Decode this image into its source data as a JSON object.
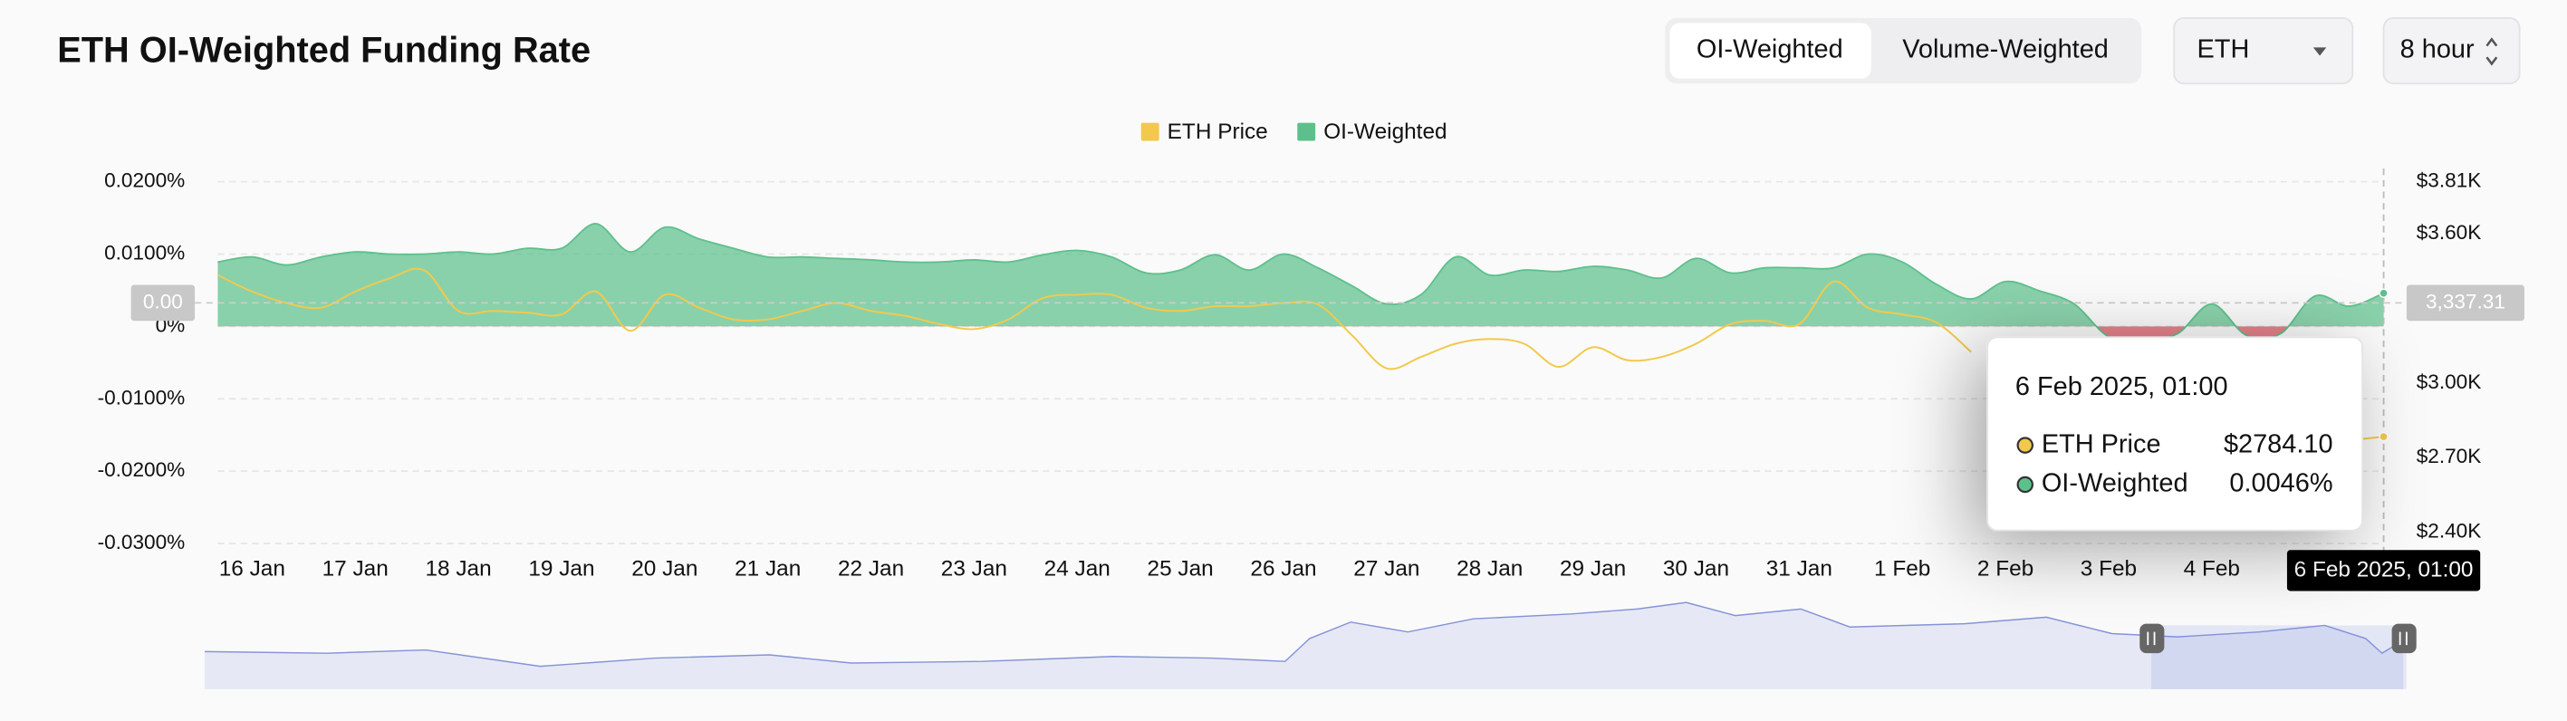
{
  "header": {
    "title": "ETH OI-Weighted Funding Rate",
    "tabs": [
      "OI-Weighted",
      "Volume-Weighted"
    ],
    "coin": "ETH",
    "interval": "8 hour"
  },
  "chart_data": {
    "type": "area",
    "legend": "top",
    "categories": [
      null,
      "16 Jan",
      null,
      null,
      "17 Jan",
      null,
      null,
      "18 Jan",
      null,
      null,
      "19 Jan",
      null,
      null,
      "20 Jan",
      null,
      null,
      "21 Jan",
      null,
      null,
      "22 Jan",
      null,
      null,
      "23 Jan",
      null,
      null,
      "24 Jan",
      null,
      null,
      "25 Jan",
      null,
      null,
      "26 Jan",
      null,
      null,
      "27 Jan",
      null,
      null,
      "28 Jan",
      null,
      null,
      "29 Jan",
      null,
      null,
      "30 Jan",
      null,
      null,
      "31 Jan",
      null,
      null,
      "1 Feb",
      null,
      null,
      "2 Feb",
      null,
      null,
      "3 Feb",
      null,
      null,
      "4 Feb",
      null,
      null,
      null,
      null,
      null
    ],
    "series": [
      {
        "name": "ETH Price",
        "type": "line",
        "axis": "y2",
        "color": "#f2c94c",
        "values": [
          3434,
          3368,
          3322,
          3303,
          3368,
          3421,
          3454,
          3290,
          3290,
          3283,
          3276,
          3368,
          3210,
          3355,
          3303,
          3256,
          3256,
          3290,
          3322,
          3290,
          3270,
          3237,
          3217,
          3256,
          3342,
          3355,
          3355,
          3303,
          3290,
          3309,
          3309,
          3322,
          3316,
          3191,
          3059,
          3105,
          3158,
          3177,
          3158,
          3065,
          3144,
          3092,
          3105,
          3158,
          3237,
          3250,
          3237,
          3408,
          3303,
          3276,
          3243,
          3125,
          null,
          null,
          null,
          null,
          null,
          null,
          null,
          null,
          null,
          null,
          2769,
          2784.1
        ]
      },
      {
        "name": "OI-Weighted",
        "type": "area",
        "color": "#5dc08c",
        "negative_color": "#e06c75",
        "values": [
          0.0089,
          0.0096,
          0.0085,
          0.0096,
          0.0103,
          0.01,
          0.01,
          0.0103,
          0.01,
          0.0108,
          0.0108,
          0.0142,
          0.0103,
          0.0137,
          0.0121,
          0.0108,
          0.0096,
          0.0096,
          0.0094,
          0.0092,
          0.0089,
          0.0089,
          0.0092,
          0.0089,
          0.0099,
          0.0105,
          0.0096,
          0.0074,
          0.0078,
          0.0099,
          0.0078,
          0.01,
          0.0081,
          0.0056,
          0.0031,
          0.0044,
          0.0096,
          0.0071,
          0.0078,
          0.0076,
          0.0083,
          0.0078,
          0.0067,
          0.0094,
          0.0074,
          0.0081,
          0.0081,
          0.0081,
          0.01,
          0.0089,
          0.0058,
          0.0038,
          0.0062,
          0.0049,
          0.0031,
          -0.0014,
          -0.0017,
          -0.001,
          0.0031,
          -0.0012,
          -0.001,
          0.0042,
          0.0028,
          0.0046
        ]
      }
    ],
    "ylim": [
      -0.03,
      0.02
    ],
    "yticks": [
      {
        "value": 0.02,
        "label": "0.0200%"
      },
      {
        "value": 0.01,
        "label": "0.0100%"
      },
      {
        "value": 0,
        "label": "0%"
      },
      {
        "value": -0.01,
        "label": "-0.0100%"
      },
      {
        "value": -0.02,
        "label": "-0.0200%"
      },
      {
        "value": -0.03,
        "label": "-0.0300%"
      }
    ],
    "y2lim": [
      2354,
      3810
    ],
    "y2ticks": [
      {
        "value": 3810,
        "label": "$3.81K"
      },
      {
        "value": 3600,
        "label": "$3.60K"
      },
      {
        "value": 3000,
        "label": "$3.00K"
      },
      {
        "value": 2700,
        "label": "$2.70K"
      },
      {
        "value": 2400,
        "label": "$2.40K"
      }
    ],
    "grid": true,
    "crosshair": {
      "y_label": "0.00",
      "y2_label": "3,337.31",
      "x_label": "6 Feb 2025, 01:00"
    },
    "tooltip": {
      "values": [
        "$2784.10",
        "0.0046%"
      ]
    }
  }
}
